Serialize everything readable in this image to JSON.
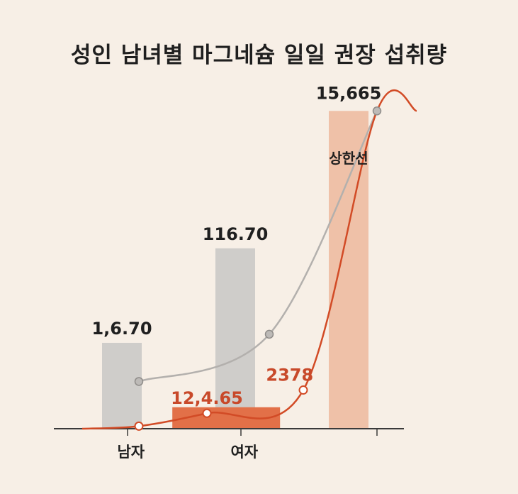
{
  "title": "성인 남녀별 마그네슘 일일 권장 섭취량",
  "colors": {
    "background": "#f7efe6",
    "gray_bar": "#cfcdca",
    "orange_bar": "#e27048",
    "limit_bar": "#efc1a8",
    "gray_line": "#b3b0ad",
    "red_line": "#d24b26",
    "axis": "#3a3a3a",
    "label_dark": "#1f1f1f",
    "label_red": "#c8492a"
  },
  "chart_data": {
    "type": "bar",
    "title": "성인 남녀별 마그네슘 일일 권장 섭취량",
    "categories": [
      "남자",
      "여자",
      ""
    ],
    "limit_label": "상한선",
    "series": [
      {
        "kind": "bar",
        "color": "gray",
        "values": [
          1.0,
          2.1,
          null
        ],
        "labels": [
          "1,6.70",
          "116.70",
          ""
        ]
      },
      {
        "kind": "bar",
        "color": "orange",
        "values": [
          null,
          0.25,
          null
        ],
        "labels": [
          "",
          "12,4.65",
          ""
        ]
      },
      {
        "kind": "bar",
        "color": "light-orange",
        "values": [
          null,
          null,
          3.7
        ],
        "labels": [
          "",
          "",
          "15,665"
        ]
      },
      {
        "kind": "line",
        "color": "gray",
        "points": [
          [
            0.15,
            0.55
          ],
          [
            1.3,
            1.1
          ],
          [
            2.25,
            3.7
          ]
        ]
      },
      {
        "kind": "line",
        "color": "red",
        "points": [
          [
            -0.35,
            0.0
          ],
          [
            0.15,
            0.03
          ],
          [
            0.75,
            0.18
          ],
          [
            1.6,
            0.45
          ],
          [
            2.25,
            3.7
          ],
          [
            2.6,
            3.7
          ]
        ],
        "markers": [
          [
            0.15,
            0.03
          ],
          [
            0.75,
            0.18
          ],
          [
            1.6,
            0.45
          ]
        ],
        "label": "2378"
      }
    ],
    "xlim": [
      -0.6,
      2.8
    ],
    "ylim": [
      0,
      4.0
    ],
    "grid": false,
    "legend": "none"
  }
}
